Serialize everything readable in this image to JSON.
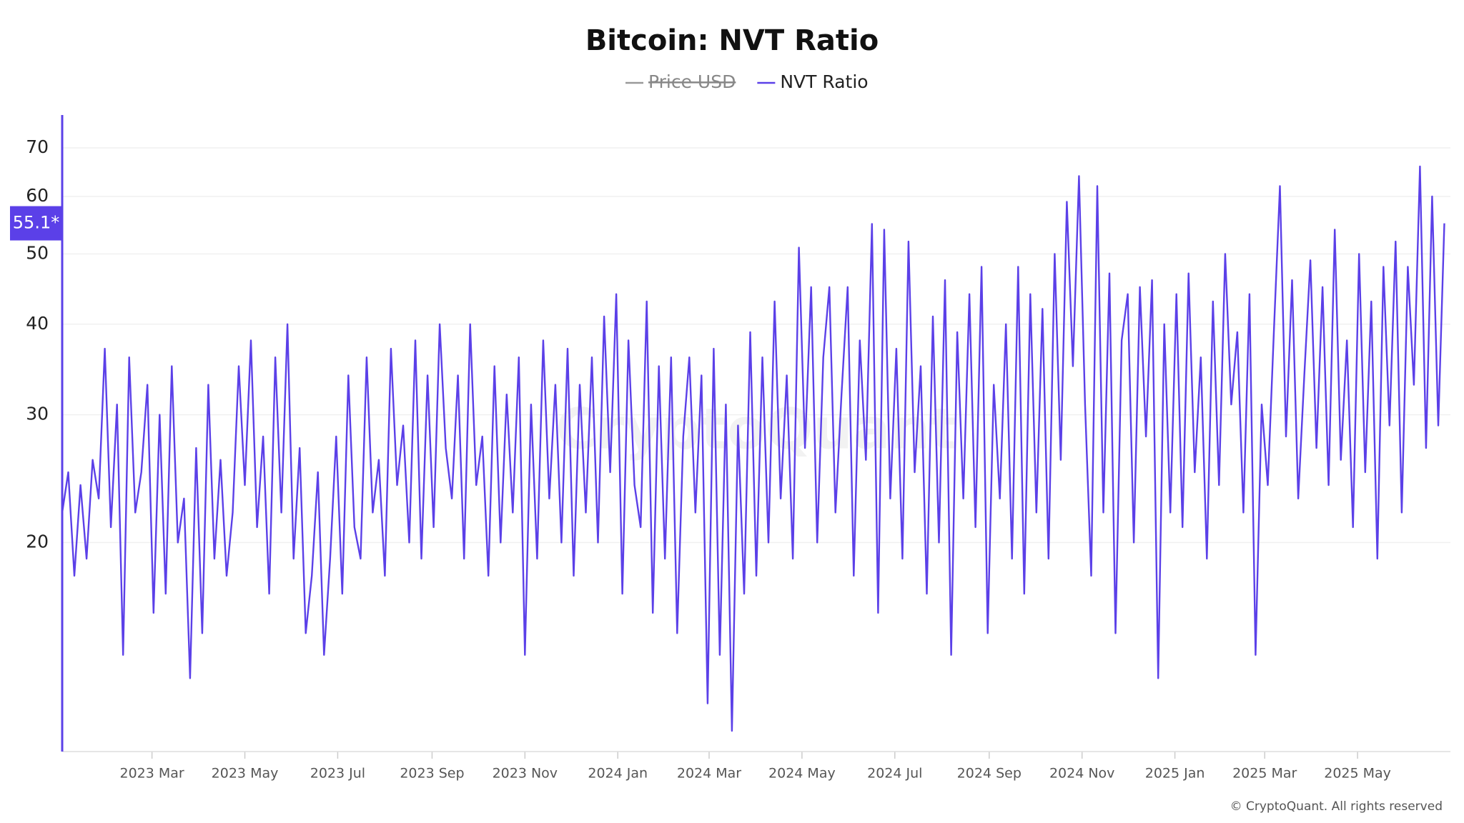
{
  "chart_data": {
    "type": "line",
    "title": "Bitcoin: NVT Ratio",
    "log": true,
    "grid": true,
    "legend": "top",
    "ylim": [
      10.3,
      77.7
    ],
    "yticks": [
      20,
      30,
      40,
      50,
      60,
      70
    ],
    "xlim": [
      0,
      228
    ],
    "xticks": [
      {
        "value": 14.75,
        "label": "2023 Mar"
      },
      {
        "value": 30,
        "label": "2023 May"
      },
      {
        "value": 45.25,
        "label": "2023 Jul"
      },
      {
        "value": 60.75,
        "label": "2023 Sep"
      },
      {
        "value": 76,
        "label": "2023 Nov"
      },
      {
        "value": 91.25,
        "label": "2024 Jan"
      },
      {
        "value": 106.25,
        "label": "2024 Mar"
      },
      {
        "value": 121.5,
        "label": "2024 May"
      },
      {
        "value": 136.75,
        "label": "2024 Jul"
      },
      {
        "value": 152.25,
        "label": "2024 Sep"
      },
      {
        "value": 167.5,
        "label": "2024 Nov"
      },
      {
        "value": 182.75,
        "label": "2025 Jan"
      },
      {
        "value": 197.5,
        "label": "2025 Mar"
      },
      {
        "value": 212.75,
        "label": "2025 May"
      }
    ],
    "last_value_label": "55.1*",
    "watermark": "CryptoQuant",
    "footer": "© CryptoQuant. All rights reserved",
    "series": [
      {
        "name": "Price USD",
        "color": "#999999",
        "hidden": true
      },
      {
        "name": "NVT Ratio",
        "color": "#5b40e8",
        "values": [
          22,
          25,
          18,
          24,
          19,
          26,
          23,
          37,
          21,
          31,
          14,
          36,
          22,
          25,
          33,
          16,
          30,
          17,
          35,
          20,
          23,
          13,
          27,
          15,
          33,
          19,
          26,
          18,
          22,
          35,
          24,
          38,
          21,
          28,
          17,
          36,
          22,
          40,
          19,
          27,
          15,
          18,
          25,
          14,
          19,
          28,
          17,
          34,
          21,
          19,
          36,
          22,
          26,
          18,
          37,
          24,
          29,
          20,
          38,
          19,
          34,
          21,
          40,
          27,
          23,
          34,
          19,
          40,
          24,
          28,
          18,
          35,
          20,
          32,
          22,
          36,
          14,
          31,
          19,
          38,
          23,
          33,
          20,
          37,
          18,
          33,
          22,
          36,
          20,
          41,
          25,
          44,
          17,
          38,
          24,
          21,
          43,
          16,
          35,
          19,
          36,
          15,
          28,
          36,
          22,
          34,
          12,
          37,
          14,
          31,
          11,
          29,
          17,
          39,
          18,
          36,
          20,
          43,
          23,
          34,
          19,
          51,
          27,
          45,
          20,
          36,
          45,
          22,
          32,
          45,
          18,
          38,
          26,
          55,
          16,
          54,
          23,
          37,
          19,
          52,
          25,
          35,
          17,
          41,
          20,
          46,
          14,
          39,
          23,
          44,
          21,
          48,
          15,
          33,
          23,
          40,
          19,
          48,
          17,
          44,
          22,
          42,
          19,
          50,
          26,
          59,
          35,
          64,
          31,
          18,
          62,
          22,
          47,
          15,
          38,
          44,
          20,
          45,
          28,
          46,
          13,
          40,
          22,
          44,
          21,
          47,
          25,
          36,
          19,
          43,
          24,
          50,
          31,
          39,
          22,
          44,
          14,
          31,
          24,
          39,
          62,
          28,
          46,
          23,
          34,
          49,
          27,
          45,
          24,
          54,
          26,
          38,
          21,
          50,
          25,
          43,
          19,
          48,
          29,
          52,
          22,
          48,
          33,
          66,
          27,
          60,
          29,
          55.1
        ]
      }
    ]
  }
}
